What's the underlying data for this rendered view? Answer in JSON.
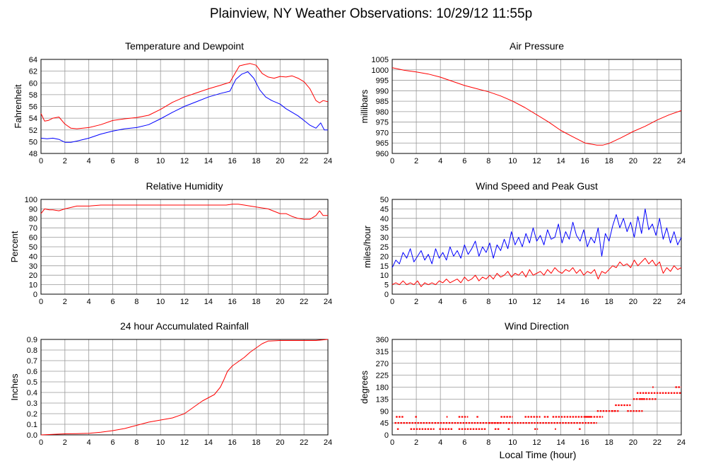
{
  "page": {
    "title": "Plainview, NY Weather Observations: 10/29/12 11:55p",
    "x_axis_label": "Local Time (hour)"
  },
  "colors": {
    "series_red": "#ff0000",
    "series_blue": "#0000ff",
    "grid": "#999999",
    "frame": "#000000"
  },
  "chart_data": [
    {
      "id": "temp",
      "type": "line",
      "title": "Temperature and Dewpoint",
      "ylabel": "Fahrenheit",
      "xlim": [
        0,
        24
      ],
      "ylim": [
        48,
        64
      ],
      "xticks": [
        0,
        2,
        4,
        6,
        8,
        10,
        12,
        14,
        16,
        18,
        20,
        22,
        24
      ],
      "yticks": [
        48,
        50,
        52,
        54,
        56,
        58,
        60,
        62,
        64
      ],
      "grid": true,
      "series": [
        {
          "color": "#ff0000",
          "x": [
            0,
            0.3,
            0.6,
            1.0,
            1.5,
            2.0,
            2.5,
            3.0,
            4.0,
            5.0,
            6.0,
            7.0,
            8.0,
            9.0,
            10.0,
            11.0,
            12.0,
            13.0,
            14.0,
            15.0,
            15.8,
            16.2,
            16.6,
            17.0,
            17.5,
            18.0,
            18.5,
            19.0,
            19.5,
            20.0,
            20.5,
            21.0,
            21.5,
            22.0,
            22.5,
            23.0,
            23.3,
            23.6,
            24.0
          ],
          "y": [
            54.8,
            53.5,
            53.6,
            54.0,
            54.2,
            53.0,
            52.3,
            52.2,
            52.4,
            52.9,
            53.6,
            53.9,
            54.1,
            54.5,
            55.5,
            56.7,
            57.6,
            58.3,
            59.0,
            59.6,
            60.1,
            61.5,
            62.9,
            63.1,
            63.3,
            63.0,
            61.6,
            61.0,
            60.8,
            61.1,
            61.0,
            61.2,
            60.8,
            60.2,
            59.0,
            57.0,
            56.6,
            57.0,
            56.8
          ]
        },
        {
          "color": "#0000ff",
          "x": [
            0,
            0.5,
            1.0,
            1.5,
            2.0,
            2.5,
            3.0,
            4.0,
            5.0,
            6.0,
            7.0,
            8.0,
            9.0,
            10.0,
            11.0,
            12.0,
            13.0,
            14.0,
            15.0,
            15.8,
            16.3,
            16.8,
            17.3,
            17.8,
            18.3,
            18.8,
            19.3,
            20.0,
            20.5,
            21.0,
            21.5,
            22.0,
            22.5,
            23.0,
            23.4,
            23.7,
            24.0
          ],
          "y": [
            50.6,
            50.5,
            50.6,
            50.4,
            49.9,
            49.9,
            50.1,
            50.6,
            51.3,
            51.8,
            52.2,
            52.4,
            52.9,
            53.9,
            55.0,
            56.0,
            56.8,
            57.6,
            58.2,
            58.6,
            60.6,
            61.5,
            61.9,
            60.8,
            58.8,
            57.6,
            57.0,
            56.4,
            55.6,
            55.0,
            54.4,
            53.6,
            52.8,
            52.3,
            53.2,
            52.0,
            52.0
          ]
        }
      ]
    },
    {
      "id": "pressure",
      "type": "line",
      "title": "Air Pressure",
      "ylabel": "millibars",
      "xlim": [
        0,
        24
      ],
      "ylim": [
        960,
        1005
      ],
      "xticks": [
        0,
        2,
        4,
        6,
        8,
        10,
        12,
        14,
        16,
        18,
        20,
        22,
        24
      ],
      "yticks": [
        960,
        965,
        970,
        975,
        980,
        985,
        990,
        995,
        1000,
        1005
      ],
      "grid": true,
      "series": [
        {
          "color": "#ff0000",
          "x": [
            0,
            1,
            2,
            3,
            4,
            5,
            6,
            7,
            8,
            9,
            10,
            11,
            12,
            13,
            14,
            15,
            16,
            17,
            17.5,
            18,
            19,
            20,
            21,
            22,
            23,
            24
          ],
          "y": [
            1001,
            999.8,
            999,
            998,
            996.5,
            994.5,
            992.5,
            991,
            989.5,
            987.5,
            985,
            982,
            978.5,
            975,
            971,
            968,
            965,
            964,
            964,
            964.8,
            967.5,
            970.5,
            973,
            976,
            978.5,
            980.5
          ]
        }
      ]
    },
    {
      "id": "humidity",
      "type": "line",
      "title": "Relative Humidity",
      "ylabel": "Percent",
      "xlim": [
        0,
        24
      ],
      "ylim": [
        0,
        100
      ],
      "xticks": [
        0,
        2,
        4,
        6,
        8,
        10,
        12,
        14,
        16,
        18,
        20,
        22,
        24
      ],
      "yticks": [
        0,
        10,
        20,
        30,
        40,
        50,
        60,
        70,
        80,
        90,
        100
      ],
      "grid": true,
      "series": [
        {
          "color": "#ff0000",
          "x": [
            0,
            0.3,
            0.7,
            1.0,
            1.5,
            2.0,
            3.0,
            4.0,
            5.0,
            6.0,
            8.0,
            10.0,
            12.0,
            14.0,
            15.5,
            16.0,
            16.5,
            17.0,
            18.0,
            19.0,
            20.0,
            20.5,
            21.0,
            21.5,
            22.0,
            22.5,
            23.0,
            23.3,
            23.6,
            24.0
          ],
          "y": [
            85,
            90,
            89,
            89,
            88,
            90,
            93,
            93,
            94,
            94,
            94,
            94,
            94,
            94,
            94,
            95,
            95,
            94,
            92,
            90,
            85,
            85,
            82,
            80,
            79,
            79,
            83,
            88,
            83,
            83
          ]
        }
      ]
    },
    {
      "id": "wind",
      "type": "line",
      "title": "Wind Speed and Peak Gust",
      "ylabel": "miles/hour",
      "xlim": [
        0,
        24
      ],
      "ylim": [
        0,
        50
      ],
      "xticks": [
        0,
        2,
        4,
        6,
        8,
        10,
        12,
        14,
        16,
        18,
        20,
        22,
        24
      ],
      "yticks": [
        0,
        5,
        10,
        15,
        20,
        25,
        30,
        35,
        40,
        45,
        50
      ],
      "grid": true,
      "series": [
        {
          "color": "#0000ff",
          "x": [
            0.0,
            0.3,
            0.6,
            0.9,
            1.2,
            1.5,
            1.8,
            2.1,
            2.4,
            2.7,
            3.0,
            3.3,
            3.6,
            3.9,
            4.2,
            4.5,
            4.8,
            5.1,
            5.4,
            5.7,
            6.0,
            6.3,
            6.6,
            6.9,
            7.2,
            7.5,
            7.8,
            8.1,
            8.4,
            8.7,
            9.0,
            9.3,
            9.6,
            9.9,
            10.2,
            10.5,
            10.8,
            11.1,
            11.4,
            11.7,
            12.0,
            12.3,
            12.6,
            12.9,
            13.2,
            13.5,
            13.8,
            14.1,
            14.4,
            14.7,
            15.0,
            15.3,
            15.6,
            15.9,
            16.2,
            16.5,
            16.8,
            17.1,
            17.4,
            17.7,
            18.0,
            18.3,
            18.6,
            18.9,
            19.2,
            19.5,
            19.8,
            20.1,
            20.4,
            20.7,
            21.0,
            21.3,
            21.6,
            21.9,
            22.2,
            22.5,
            22.8,
            23.1,
            23.4,
            23.7,
            24.0
          ],
          "y": [
            14,
            18,
            16,
            22,
            19,
            24,
            17,
            20,
            23,
            18,
            21,
            16,
            24,
            19,
            22,
            18,
            25,
            20,
            23,
            19,
            26,
            21,
            24,
            28,
            20,
            25,
            22,
            27,
            19,
            26,
            23,
            29,
            24,
            33,
            26,
            30,
            25,
            32,
            27,
            35,
            28,
            31,
            26,
            34,
            29,
            30,
            37,
            27,
            33,
            29,
            38,
            31,
            28,
            34,
            25,
            30,
            27,
            35,
            20,
            32,
            28,
            36,
            42,
            35,
            40,
            33,
            38,
            30,
            41,
            32,
            45,
            34,
            37,
            31,
            40,
            29,
            35,
            27,
            33,
            26,
            30
          ]
        },
        {
          "color": "#ff0000",
          "x": [
            0.0,
            0.3,
            0.6,
            0.9,
            1.2,
            1.5,
            1.8,
            2.1,
            2.4,
            2.7,
            3.0,
            3.3,
            3.6,
            3.9,
            4.2,
            4.5,
            4.8,
            5.1,
            5.4,
            5.7,
            6.0,
            6.3,
            6.6,
            6.9,
            7.2,
            7.5,
            7.8,
            8.1,
            8.4,
            8.7,
            9.0,
            9.3,
            9.6,
            9.9,
            10.2,
            10.5,
            10.8,
            11.1,
            11.4,
            11.7,
            12.0,
            12.3,
            12.6,
            12.9,
            13.2,
            13.5,
            13.8,
            14.1,
            14.4,
            14.7,
            15.0,
            15.3,
            15.6,
            15.9,
            16.2,
            16.5,
            16.8,
            17.1,
            17.4,
            17.7,
            18.0,
            18.3,
            18.6,
            18.9,
            19.2,
            19.5,
            19.8,
            20.1,
            20.4,
            20.7,
            21.0,
            21.3,
            21.6,
            21.9,
            22.2,
            22.5,
            22.8,
            23.1,
            23.4,
            23.7,
            24.0
          ],
          "y": [
            5,
            6,
            5,
            7,
            5,
            6,
            5,
            7,
            4,
            6,
            5,
            6,
            5,
            7,
            6,
            8,
            6,
            7,
            8,
            6,
            9,
            7,
            8,
            10,
            7,
            9,
            8,
            10,
            8,
            11,
            9,
            10,
            12,
            9,
            11,
            10,
            12,
            9,
            13,
            10,
            11,
            12,
            10,
            13,
            11,
            14,
            12,
            11,
            13,
            12,
            14,
            11,
            13,
            10,
            12,
            11,
            13,
            8,
            12,
            11,
            13,
            15,
            14,
            17,
            15,
            16,
            14,
            18,
            15,
            17,
            19,
            16,
            18,
            15,
            17,
            11,
            14,
            12,
            15,
            13,
            14
          ]
        }
      ]
    },
    {
      "id": "rain",
      "type": "line",
      "title": "24 hour Accumulated Rainfall",
      "ylabel": "Inches",
      "xlim": [
        0,
        24
      ],
      "ylim": [
        0,
        0.9
      ],
      "xticks": [
        0,
        2,
        4,
        6,
        8,
        10,
        12,
        14,
        16,
        18,
        20,
        22,
        24
      ],
      "yticks": [
        0.0,
        0.1,
        0.2,
        0.3,
        0.4,
        0.5,
        0.6,
        0.7,
        0.8,
        0.9
      ],
      "tick_decimals": 1,
      "grid": true,
      "series": [
        {
          "color": "#ff0000",
          "x": [
            0,
            1,
            2,
            3,
            4,
            5,
            6,
            7,
            8,
            9,
            10,
            11,
            12,
            12.5,
            13,
            13.5,
            14,
            14.5,
            15,
            15.3,
            15.6,
            16,
            16.5,
            17,
            17.5,
            18,
            18.5,
            19,
            20,
            21,
            22,
            23,
            24
          ],
          "y": [
            0,
            0.005,
            0.01,
            0.012,
            0.015,
            0.025,
            0.04,
            0.06,
            0.09,
            0.12,
            0.14,
            0.16,
            0.2,
            0.24,
            0.28,
            0.32,
            0.35,
            0.38,
            0.45,
            0.52,
            0.6,
            0.65,
            0.69,
            0.73,
            0.78,
            0.82,
            0.86,
            0.885,
            0.89,
            0.89,
            0.89,
            0.89,
            0.9
          ]
        }
      ]
    },
    {
      "id": "direction",
      "type": "scatter",
      "title": "Wind Direction",
      "ylabel": "degrees",
      "xlim": [
        0,
        24
      ],
      "ylim": [
        0,
        360
      ],
      "xticks": [
        0,
        2,
        4,
        6,
        8,
        10,
        12,
        14,
        16,
        18,
        20,
        22,
        24
      ],
      "yticks": [
        0,
        45,
        90,
        135,
        180,
        225,
        270,
        315,
        360
      ],
      "grid": true,
      "series": [
        {
          "color": "#ff0000",
          "marker": "dash",
          "segments": [
            [
              0.2,
              3.5,
              45
            ],
            [
              0.3,
              1.0,
              68
            ],
            [
              0.4,
              0.6,
              22
            ],
            [
              1.5,
              3.5,
              22
            ],
            [
              1.9,
              2.1,
              68
            ],
            [
              3.5,
              9.0,
              45
            ],
            [
              3.9,
              5.0,
              22
            ],
            [
              4.5,
              4.6,
              68
            ],
            [
              5.5,
              7.8,
              22
            ],
            [
              5.5,
              6.3,
              68
            ],
            [
              7.0,
              7.2,
              68
            ],
            [
              8.0,
              17.0,
              45
            ],
            [
              8.5,
              8.9,
              22
            ],
            [
              9.0,
              10.0,
              68
            ],
            [
              9.6,
              9.8,
              22
            ],
            [
              11.0,
              12.3,
              68
            ],
            [
              11.8,
              12.1,
              22
            ],
            [
              12.6,
              13.0,
              68
            ],
            [
              13.3,
              16.5,
              68
            ],
            [
              13.5,
              13.6,
              22
            ],
            [
              15.5,
              15.7,
              22
            ],
            [
              16.0,
              17.5,
              68
            ],
            [
              17.0,
              18.5,
              90
            ],
            [
              18.2,
              18.8,
              90
            ],
            [
              18.5,
              19.8,
              112
            ],
            [
              19.5,
              20.8,
              90
            ],
            [
              20.0,
              21.0,
              135
            ],
            [
              20.3,
              21.1,
              158
            ],
            [
              20.6,
              22.0,
              135
            ],
            [
              21.0,
              24.0,
              158
            ],
            [
              21.6,
              21.7,
              180
            ],
            [
              23.5,
              24.0,
              180
            ]
          ]
        }
      ]
    }
  ]
}
